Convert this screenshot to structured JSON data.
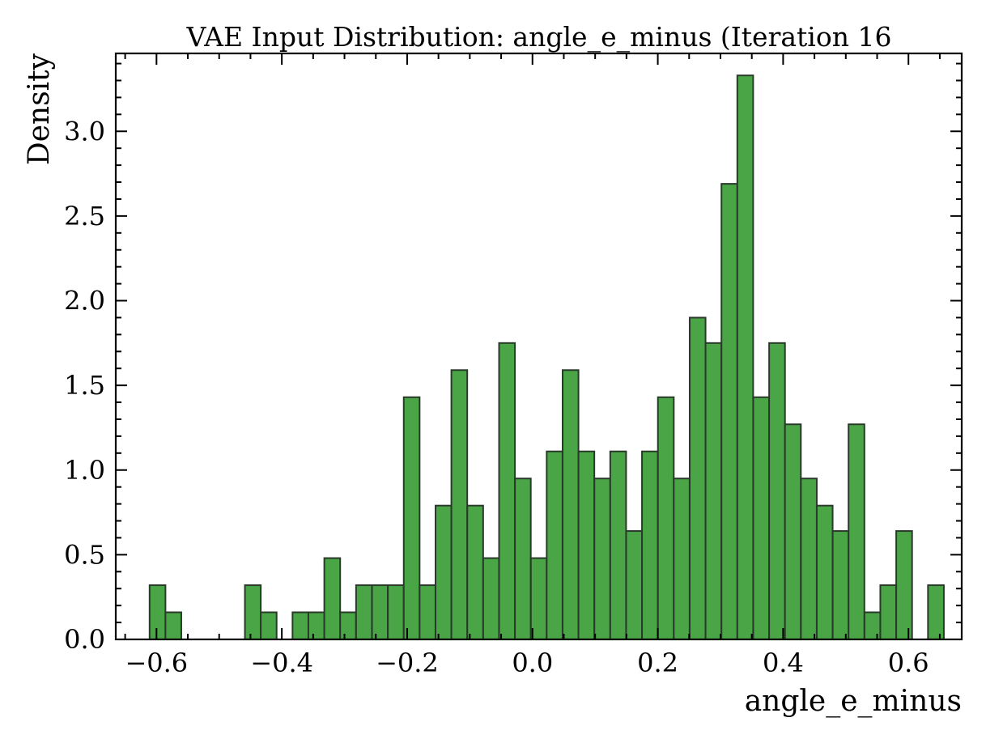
{
  "chart_data": {
    "type": "bar",
    "title": "VAE Input Distribution: angle_e_minus (Iteration 16",
    "xlabel": "angle_e_minus",
    "ylabel": "Density",
    "xlim": [
      -0.665,
      0.685
    ],
    "ylim": [
      0.0,
      3.46
    ],
    "bin_width": 0.0253,
    "xticks": [
      {
        "value": -0.6,
        "label": "−0.6"
      },
      {
        "value": -0.4,
        "label": "−0.4"
      },
      {
        "value": -0.2,
        "label": "−0.2"
      },
      {
        "value": 0.0,
        "label": "0.0"
      },
      {
        "value": 0.2,
        "label": "0.2"
      },
      {
        "value": 0.4,
        "label": "0.4"
      },
      {
        "value": 0.6,
        "label": "0.6"
      }
    ],
    "yticks": [
      {
        "value": 0.0,
        "label": "0.0"
      },
      {
        "value": 0.5,
        "label": "0.5"
      },
      {
        "value": 1.0,
        "label": "1.0"
      },
      {
        "value": 1.5,
        "label": "1.5"
      },
      {
        "value": 2.0,
        "label": "2.0"
      },
      {
        "value": 2.5,
        "label": "2.5"
      },
      {
        "value": 3.0,
        "label": "3.0"
      }
    ],
    "bins": [
      {
        "x0": -0.611,
        "density": 0.32
      },
      {
        "x0": -0.5857,
        "density": 0.16
      },
      {
        "x0": -0.4589,
        "density": 0.32
      },
      {
        "x0": -0.4336,
        "density": 0.16
      },
      {
        "x0": -0.3829,
        "density": 0.16
      },
      {
        "x0": -0.3576,
        "density": 0.16
      },
      {
        "x0": -0.3322,
        "density": 0.48
      },
      {
        "x0": -0.3069,
        "density": 0.16
      },
      {
        "x0": -0.2815,
        "density": 0.32
      },
      {
        "x0": -0.2561,
        "density": 0.32
      },
      {
        "x0": -0.2308,
        "density": 0.32
      },
      {
        "x0": -0.2054,
        "density": 1.43
      },
      {
        "x0": -0.1801,
        "density": 0.32
      },
      {
        "x0": -0.1547,
        "density": 0.79
      },
      {
        "x0": -0.1294,
        "density": 1.59
      },
      {
        "x0": -0.104,
        "density": 0.79
      },
      {
        "x0": -0.0787,
        "density": 0.48
      },
      {
        "x0": -0.0533,
        "density": 1.75
      },
      {
        "x0": -0.028,
        "density": 0.95
      },
      {
        "x0": -0.0026,
        "density": 0.48
      },
      {
        "x0": 0.0227,
        "density": 1.11
      },
      {
        "x0": 0.0481,
        "density": 1.59
      },
      {
        "x0": 0.0734,
        "density": 1.11
      },
      {
        "x0": 0.0988,
        "density": 0.95
      },
      {
        "x0": 0.1241,
        "density": 1.11
      },
      {
        "x0": 0.1495,
        "density": 0.64
      },
      {
        "x0": 0.1748,
        "density": 1.11
      },
      {
        "x0": 0.2002,
        "density": 1.43
      },
      {
        "x0": 0.2255,
        "density": 0.95
      },
      {
        "x0": 0.2509,
        "density": 1.9
      },
      {
        "x0": 0.2762,
        "density": 1.75
      },
      {
        "x0": 0.3016,
        "density": 2.69
      },
      {
        "x0": 0.3269,
        "density": 3.33
      },
      {
        "x0": 0.3523,
        "density": 1.43
      },
      {
        "x0": 0.3777,
        "density": 1.75
      },
      {
        "x0": 0.403,
        "density": 1.27
      },
      {
        "x0": 0.4284,
        "density": 0.95
      },
      {
        "x0": 0.4537,
        "density": 0.79
      },
      {
        "x0": 0.4791,
        "density": 0.64
      },
      {
        "x0": 0.5044,
        "density": 1.27
      },
      {
        "x0": 0.5298,
        "density": 0.16
      },
      {
        "x0": 0.5551,
        "density": 0.32
      },
      {
        "x0": 0.5805,
        "density": 0.64
      },
      {
        "x0": 0.6312,
        "density": 0.32
      }
    ],
    "grid": false,
    "legend": "none",
    "colors": {
      "bar_fill": "#4aa547",
      "bar_edge": "#2a3a2a",
      "axis": "#000000"
    }
  }
}
